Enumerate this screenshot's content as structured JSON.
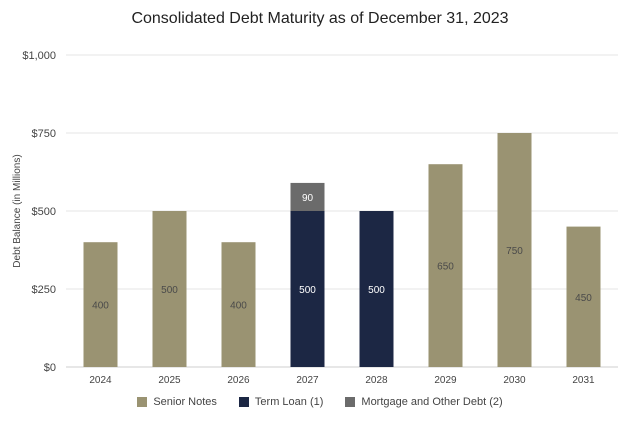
{
  "chart_data": {
    "type": "bar",
    "stacked": true,
    "title": "Consolidated Debt Maturity as of December 31, 2023",
    "xlabel": "",
    "ylabel": "Debt Balance (in Millions)",
    "ylim": [
      0,
      1000
    ],
    "yticks": [
      0,
      250,
      500,
      750,
      1000
    ],
    "ytick_labels": [
      "$0",
      "$250",
      "$500",
      "$750",
      "$1,000"
    ],
    "grid": true,
    "legend_position": "bottom",
    "categories": [
      "2024",
      "2025",
      "2026",
      "2027",
      "2028",
      "2029",
      "2030",
      "2031"
    ],
    "series": [
      {
        "name": "Senior Notes",
        "color": "#9a9372",
        "label_color": "#4a4a4a",
        "values": [
          400,
          500,
          400,
          0,
          0,
          650,
          750,
          450
        ]
      },
      {
        "name": "Term Loan (1)",
        "color": "#1c2744",
        "label_color": "#ffffff",
        "values": [
          0,
          0,
          0,
          500,
          500,
          0,
          0,
          0
        ]
      },
      {
        "name": "Mortgage and Other Debt (2)",
        "color": "#6b6b6b",
        "label_color": "#ffffff",
        "values": [
          0,
          0,
          0,
          90,
          0,
          0,
          0,
          0
        ]
      }
    ]
  }
}
